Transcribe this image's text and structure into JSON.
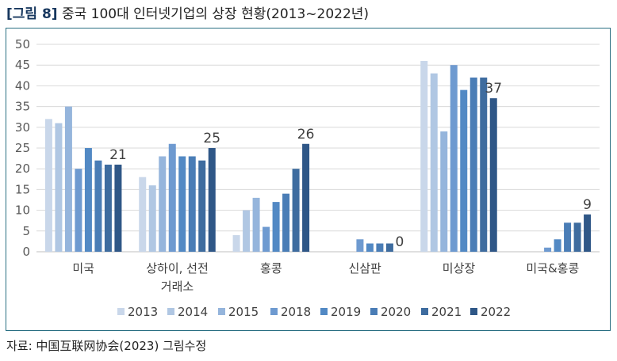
{
  "figure": {
    "label": "[그림 8]",
    "title": "중국 100대 인터넷기업의 상장 현황(2013~2022년)",
    "source": "자료: 中国互联网协会(2023) 그림수정"
  },
  "chart_data": {
    "type": "bar",
    "title": "",
    "xlabel": "",
    "ylabel": "",
    "ylim": [
      0,
      50
    ],
    "yticks": [
      "0",
      "5",
      "10",
      "15",
      "20",
      "25",
      "30",
      "35",
      "40",
      "45",
      "50"
    ],
    "grid": true,
    "legend_position": "bottom",
    "categories": [
      "미국",
      "상하이, 선전\n거래소",
      "홍콩",
      "신삼판",
      "미상장",
      "미국&홍콩"
    ],
    "series": [
      {
        "name": "2013",
        "color": "#c9d7ea",
        "values": [
          32,
          18,
          4,
          0,
          46,
          0
        ]
      },
      {
        "name": "2014",
        "color": "#b0c7e3",
        "values": [
          31,
          16,
          10,
          0,
          43,
          0
        ]
      },
      {
        "name": "2015",
        "color": "#95b5dc",
        "values": [
          35,
          23,
          13,
          0,
          29,
          0
        ]
      },
      {
        "name": "2018",
        "color": "#6e9ad0",
        "values": [
          20,
          26,
          6,
          3,
          45,
          1
        ]
      },
      {
        "name": "2019",
        "color": "#5289c4",
        "values": [
          25,
          23,
          12,
          2,
          39,
          3
        ]
      },
      {
        "name": "2020",
        "color": "#4a7db6",
        "values": [
          22,
          23,
          14,
          2,
          42,
          7
        ]
      },
      {
        "name": "2021",
        "color": "#3e6c9f",
        "values": [
          21,
          22,
          20,
          2,
          42,
          7
        ]
      },
      {
        "name": "2022",
        "color": "#2f5787",
        "values": [
          21,
          25,
          26,
          0,
          37,
          9
        ]
      }
    ],
    "data_labels": [
      "21",
      "25",
      "26",
      "0",
      "37",
      "9"
    ]
  }
}
